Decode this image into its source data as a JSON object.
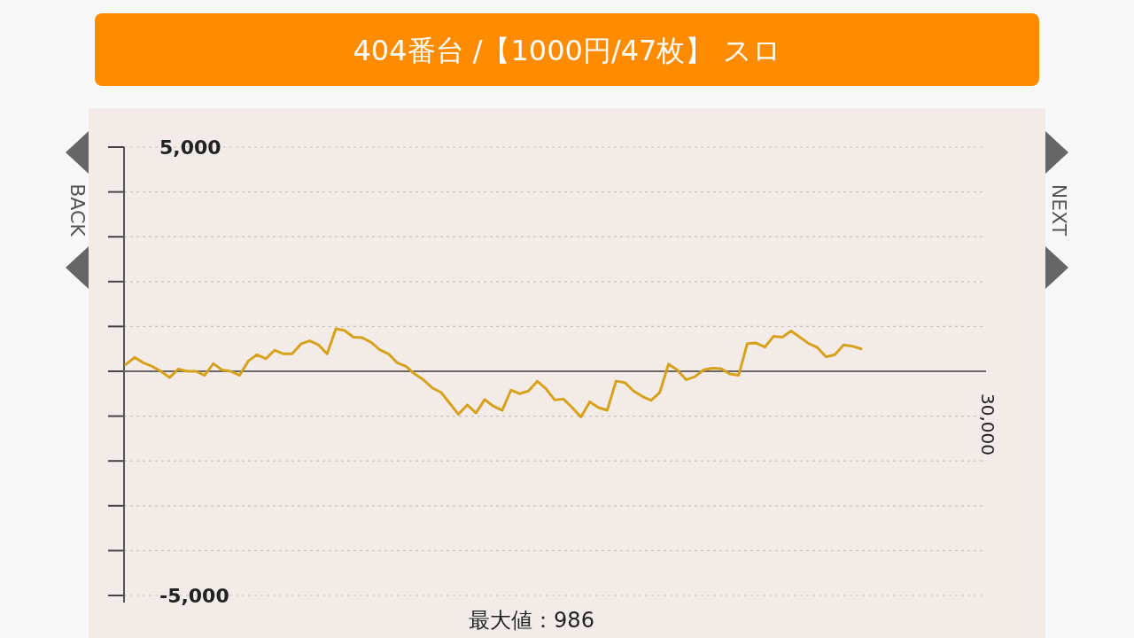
{
  "chart_data": {
    "type": "line",
    "title": "404番台 /【1000円/47枚】 スロ",
    "annotations": [
      "BACK",
      "NEXT",
      "最大値：986",
      "30,000"
    ],
    "categories": [
      null,
      null,
      null,
      null,
      null,
      null,
      null,
      null,
      null,
      null,
      null,
      null,
      null,
      null,
      null,
      null,
      null,
      null,
      null,
      null,
      null,
      null,
      null,
      null,
      null,
      null,
      null,
      null,
      null,
      null,
      null,
      null,
      null,
      null,
      null,
      null,
      null,
      null,
      null,
      null,
      null,
      null,
      null,
      null,
      null,
      null,
      null,
      null,
      null,
      null,
      null,
      null,
      null,
      null,
      null,
      null,
      null,
      null,
      null,
      null,
      null,
      null,
      null,
      null,
      null,
      null,
      null,
      null,
      null,
      null,
      null,
      null,
      null,
      null,
      null,
      null,
      null,
      null,
      null,
      null,
      null,
      null,
      null,
      null,
      null
    ],
    "series": [
      {
        "color": "#d6a21c",
        "values": [
          150,
          310,
          190,
          110,
          0,
          -140,
          50,
          0,
          0,
          -90,
          170,
          30,
          0,
          -90,
          230,
          370,
          280,
          470,
          390,
          390,
          610,
          680,
          590,
          390,
          950,
          910,
          760,
          750,
          650,
          480,
          390,
          190,
          110,
          -60,
          -190,
          -370,
          -470,
          -710,
          -960,
          -750,
          -930,
          -630,
          -780,
          -870,
          -420,
          -500,
          -440,
          -220,
          -390,
          -640,
          -620,
          -810,
          -1020,
          -680,
          -810,
          -870,
          -220,
          -250,
          -440,
          -560,
          -650,
          -470,
          160,
          30,
          -190,
          -120,
          30,
          70,
          60,
          -60,
          -90,
          620,
          630,
          540,
          780,
          760,
          900,
          760,
          620,
          530,
          320,
          370,
          590,
          560,
          500
        ]
      }
    ],
    "ylim": [
      -5000,
      5000
    ],
    "yticks": [
      {
        "value": -5000,
        "label": "-5,000"
      },
      {
        "value": -4000,
        "label": null
      },
      {
        "value": -3000,
        "label": null
      },
      {
        "value": -2000,
        "label": null
      },
      {
        "value": -1000,
        "label": null
      },
      {
        "value": 0,
        "label": null
      },
      {
        "value": 1000,
        "label": null
      },
      {
        "value": 2000,
        "label": null
      },
      {
        "value": 3000,
        "label": null
      },
      {
        "value": 4000,
        "label": null
      },
      {
        "value": 5000,
        "label": "5,000"
      }
    ],
    "grid": "y",
    "line_style": "solid"
  }
}
